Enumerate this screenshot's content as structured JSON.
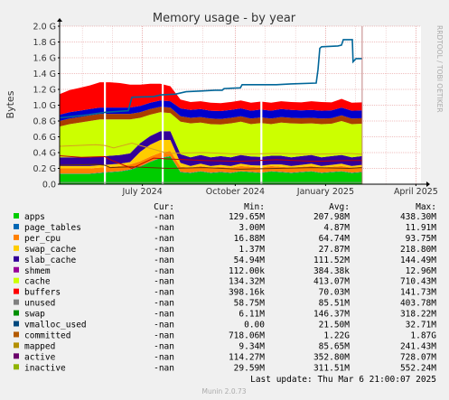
{
  "chart_data": {
    "type": "area",
    "title": "Memory usage - by year",
    "ylabel": "Bytes",
    "side_label": "RRDTOOL / TOBI OETIKER",
    "ylim": [
      0,
      2000000000
    ],
    "y_ticks": [
      {
        "v": 0,
        "label": "0.0"
      },
      {
        "v": 200000000,
        "label": "0.2 G"
      },
      {
        "v": 400000000,
        "label": "0.4 G"
      },
      {
        "v": 600000000,
        "label": "0.6 G"
      },
      {
        "v": 800000000,
        "label": "0.8 G"
      },
      {
        "v": 1000000000,
        "label": "1.0 G"
      },
      {
        "v": 1200000000,
        "label": "1.2 G"
      },
      {
        "v": 1400000000,
        "label": "1.4 G"
      },
      {
        "v": 1600000000,
        "label": "1.6 G"
      },
      {
        "v": 1800000000,
        "label": "1.8 G"
      },
      {
        "v": 2000000000,
        "label": "2.0 G"
      }
    ],
    "x_ticks": [
      {
        "t": 0.229,
        "label": "July 2024",
        "major": true
      },
      {
        "t": 0.486,
        "label": "October 2024",
        "major": true
      },
      {
        "t": 0.736,
        "label": "January 2025",
        "major": true
      },
      {
        "t": 0.986,
        "label": "April 2025",
        "major": true
      }
    ],
    "x_minor": [
      0.063,
      0.146,
      0.313,
      0.396,
      0.569,
      0.653,
      0.819,
      0.903
    ],
    "data_end": 0.836,
    "gaps": [
      0.125,
      0.285,
      0.558
    ],
    "stack": [
      {
        "name": "apps",
        "color": "#00cc00",
        "values": [
          130000000.0,
          130000000.0,
          130000000.0,
          130000000.0,
          140000000.0,
          150000000.0,
          160000000.0,
          180000000.0,
          220000000.0,
          280000000.0,
          330000000.0,
          350000000.0,
          150000000.0,
          140000000.0,
          160000000.0,
          140000000.0,
          150000000.0,
          140000000.0,
          160000000.0,
          150000000.0,
          140000000.0,
          160000000.0,
          150000000.0,
          140000000.0,
          150000000.0,
          160000000.0,
          140000000.0,
          150000000.0,
          160000000.0,
          140000000.0,
          150000000.0
        ]
      },
      {
        "name": "page_tables",
        "color": "#0066b3",
        "values": [
          4900000.0,
          4900000.0,
          4900000.0,
          4900000.0,
          4900000.0,
          4900000.0,
          4900000.0,
          4900000.0,
          4900000.0,
          4900000.0,
          4900000.0,
          4900000.0,
          4900000.0,
          4900000.0,
          4900000.0,
          4900000.0,
          4900000.0,
          4900000.0,
          4900000.0,
          4900000.0,
          4900000.0,
          4900000.0,
          4900000.0,
          4900000.0,
          4900000.0,
          4900000.0,
          4900000.0,
          4900000.0,
          4900000.0,
          4900000.0,
          4900000.0
        ]
      },
      {
        "name": "per_cpu",
        "color": "#ff8000",
        "values": [
          65000000.0,
          65000000.0,
          65000000.0,
          65000000.0,
          65000000.0,
          65000000.0,
          65000000.0,
          65000000.0,
          65000000.0,
          65000000.0,
          65000000.0,
          65000000.0,
          65000000.0,
          65000000.0,
          65000000.0,
          65000000.0,
          65000000.0,
          65000000.0,
          65000000.0,
          65000000.0,
          65000000.0,
          65000000.0,
          65000000.0,
          65000000.0,
          65000000.0,
          65000000.0,
          65000000.0,
          65000000.0,
          65000000.0,
          65000000.0,
          65000000.0
        ]
      },
      {
        "name": "swap_cache",
        "color": "#ffcc00",
        "values": [
          30000000.0,
          30000000.0,
          30000000.0,
          30000000.0,
          30000000.0,
          30000000.0,
          30000000.0,
          30000000.0,
          120000000.0,
          150000000.0,
          160000000.0,
          140000000.0,
          50000000.0,
          20000000.0,
          30000000.0,
          20000000.0,
          25000000.0,
          20000000.0,
          30000000.0,
          20000000.0,
          25000000.0,
          20000000.0,
          30000000.0,
          20000000.0,
          25000000.0,
          30000000.0,
          20000000.0,
          25000000.0,
          30000000.0,
          20000000.0,
          25000000.0
        ]
      },
      {
        "name": "slab_cache",
        "color": "#330099",
        "values": [
          110000000.0,
          110000000.0,
          110000000.0,
          110000000.0,
          110000000.0,
          110000000.0,
          110000000.0,
          110000000.0,
          110000000.0,
          110000000.0,
          110000000.0,
          110000000.0,
          110000000.0,
          110000000.0,
          110000000.0,
          110000000.0,
          110000000.0,
          110000000.0,
          110000000.0,
          110000000.0,
          110000000.0,
          110000000.0,
          110000000.0,
          110000000.0,
          110000000.0,
          110000000.0,
          110000000.0,
          110000000.0,
          110000000.0,
          110000000.0,
          110000000.0
        ]
      },
      {
        "name": "shmem",
        "color": "#990099",
        "values": [
          400000.0,
          400000.0,
          400000.0,
          400000.0,
          400000.0,
          400000.0,
          400000.0,
          400000.0,
          400000.0,
          400000.0,
          400000.0,
          400000.0,
          400000.0,
          400000.0,
          400000.0,
          400000.0,
          400000.0,
          400000.0,
          400000.0,
          400000.0,
          400000.0,
          400000.0,
          400000.0,
          400000.0,
          400000.0,
          400000.0,
          400000.0,
          400000.0,
          400000.0,
          400000.0,
          400000.0
        ]
      },
      {
        "name": "cache",
        "color": "#ccff00",
        "values": [
          390000000.0,
          420000000.0,
          440000000.0,
          460000000.0,
          470000000.0,
          460000000.0,
          450000000.0,
          430000000.0,
          320000000.0,
          270000000.0,
          240000000.0,
          230000000.0,
          410000000.0,
          430000000.0,
          410000000.0,
          420000000.0,
          400000000.0,
          430000000.0,
          420000000.0,
          410000000.0,
          430000000.0,
          400000000.0,
          420000000.0,
          430000000.0,
          410000000.0,
          400000000.0,
          420000000.0,
          410000000.0,
          430000000.0,
          420000000.0,
          410000000.0
        ]
      },
      {
        "name": "buffers",
        "color": "#aa3e00",
        "values": [
          70000000.0,
          70000000.0,
          70000000.0,
          70000000.0,
          70000000.0,
          70000000.0,
          70000000.0,
          70000000.0,
          70000000.0,
          70000000.0,
          70000000.0,
          70000000.0,
          70000000.0,
          70000000.0,
          70000000.0,
          70000000.0,
          70000000.0,
          70000000.0,
          70000000.0,
          70000000.0,
          70000000.0,
          70000000.0,
          70000000.0,
          70000000.0,
          70000000.0,
          70000000.0,
          70000000.0,
          70000000.0,
          70000000.0,
          70000000.0,
          70000000.0
        ]
      },
      {
        "name": "unused",
        "color": "#0000cc",
        "values": [
          80000000.0,
          80000000.0,
          80000000.0,
          80000000.0,
          80000000.0,
          80000000.0,
          80000000.0,
          80000000.0,
          80000000.0,
          80000000.0,
          80000000.0,
          80000000.0,
          100000000.0,
          100000000.0,
          100000000.0,
          100000000.0,
          100000000.0,
          100000000.0,
          100000000.0,
          100000000.0,
          100000000.0,
          100000000.0,
          100000000.0,
          100000000.0,
          100000000.0,
          100000000.0,
          100000000.0,
          100000000.0,
          100000000.0,
          100000000.0,
          100000000.0
        ]
      },
      {
        "name": "swap",
        "color": "#ff0000",
        "values": [
          260000000.0,
          280000000.0,
          290000000.0,
          300000000.0,
          320000000.0,
          320000000.0,
          310000000.0,
          290000000.0,
          270000000.0,
          240000000.0,
          210000000.0,
          190000000.0,
          110000000.0,
          100000000.0,
          100000000.0,
          100000000.0,
          100000000.0,
          100000000.0,
          100000000.0,
          100000000.0,
          100000000.0,
          100000000.0,
          100000000.0,
          100000000.0,
          100000000.0,
          110000000.0,
          110000000.0,
          100000000.0,
          110000000.0,
          100000000.0,
          100000000.0
        ]
      }
    ],
    "lines": [
      {
        "name": "committed",
        "color": "#006699",
        "width": 1.6,
        "points": [
          [
            0.0,
            840000000.0
          ],
          [
            0.04,
            860000000.0
          ],
          [
            0.08,
            880000000.0
          ],
          [
            0.125,
            910000000.0
          ],
          [
            0.19,
            930000000.0
          ],
          [
            0.2,
            1100000000.0
          ],
          [
            0.26,
            1110000000.0
          ],
          [
            0.28,
            1130000000.0
          ],
          [
            0.32,
            1140000000.0
          ],
          [
            0.35,
            1170000000.0
          ],
          [
            0.39,
            1180000000.0
          ],
          [
            0.43,
            1190000000.0
          ],
          [
            0.45,
            1190000000.0
          ],
          [
            0.455,
            1210000000.0
          ],
          [
            0.5,
            1220000000.0
          ],
          [
            0.505,
            1260000000.0
          ],
          [
            0.55,
            1260000000.0
          ],
          [
            0.6,
            1260000000.0
          ],
          [
            0.64,
            1270000000.0
          ],
          [
            0.71,
            1280000000.0
          ],
          [
            0.715,
            1450000000.0
          ],
          [
            0.72,
            1720000000.0
          ],
          [
            0.725,
            1740000000.0
          ],
          [
            0.77,
            1750000000.0
          ],
          [
            0.78,
            1760000000.0
          ],
          [
            0.785,
            1830000000.0
          ],
          [
            0.81,
            1830000000.0
          ],
          [
            0.812,
            1550000000.0
          ],
          [
            0.82,
            1590000000.0
          ],
          [
            0.836,
            1590000000.0
          ]
        ]
      },
      {
        "name": "mapped",
        "color": "#663300",
        "width": 1,
        "points": [
          [
            0.0,
            240000000.0
          ],
          [
            0.1,
            250000000.0
          ],
          [
            0.125,
            240000000.0
          ],
          [
            0.14,
            210000000.0
          ],
          [
            0.2,
            220000000.0
          ],
          [
            0.3,
            200000000.0
          ],
          [
            0.4,
            210000000.0
          ],
          [
            0.5,
            190000000.0
          ],
          [
            0.6,
            200000000.0
          ],
          [
            0.7,
            210000000.0
          ],
          [
            0.8,
            200000000.0
          ],
          [
            0.836,
            210000000.0
          ]
        ]
      },
      {
        "name": "active",
        "color": "#d4a020",
        "width": 1,
        "points": [
          [
            0.0,
            480000000.0
          ],
          [
            0.1,
            500000000.0
          ],
          [
            0.125,
            490000000.0
          ],
          [
            0.15,
            460000000.0
          ],
          [
            0.2,
            520000000.0
          ],
          [
            0.3,
            390000000.0
          ],
          [
            0.4,
            400000000.0
          ],
          [
            0.5,
            380000000.0
          ],
          [
            0.6,
            390000000.0
          ],
          [
            0.7,
            380000000.0
          ],
          [
            0.8,
            390000000.0
          ],
          [
            0.836,
            380000000.0
          ]
        ]
      },
      {
        "name": "inactive",
        "color": "#c00000",
        "width": 1,
        "points": [
          [
            0.0,
            360000000.0
          ],
          [
            0.06,
            340000000.0
          ],
          [
            0.125,
            350000000.0
          ],
          [
            0.14,
            310000000.0
          ],
          [
            0.2,
            200000000.0
          ],
          [
            0.26,
            330000000.0
          ],
          [
            0.3,
            320000000.0
          ],
          [
            0.4,
            300000000.0
          ],
          [
            0.5,
            290000000.0
          ],
          [
            0.6,
            310000000.0
          ],
          [
            0.7,
            290000000.0
          ],
          [
            0.8,
            300000000.0
          ],
          [
            0.836,
            300000000.0
          ]
        ]
      },
      {
        "name": "vmalloc_used",
        "color": "#888888",
        "width": 1,
        "points": [
          [
            0.0,
            22000000.0
          ],
          [
            0.836,
            22000000.0
          ]
        ]
      }
    ]
  },
  "legend": {
    "headers": {
      "cur": "Cur:",
      "min": "Min:",
      "avg": "Avg:",
      "max": "Max:"
    },
    "rows": [
      {
        "name": "apps",
        "color": "#00cc00",
        "cur": "-nan",
        "min": "129.65M",
        "avg": "207.98M",
        "max": "438.30M"
      },
      {
        "name": "page_tables",
        "color": "#0066b3",
        "cur": "-nan",
        "min": "3.00M",
        "avg": "4.87M",
        "max": "11.91M"
      },
      {
        "name": "per_cpu",
        "color": "#ff8000",
        "cur": "-nan",
        "min": "16.88M",
        "avg": "64.74M",
        "max": "93.75M"
      },
      {
        "name": "swap_cache",
        "color": "#ffcc00",
        "cur": "-nan",
        "min": "1.37M",
        "avg": "27.87M",
        "max": "218.80M"
      },
      {
        "name": "slab_cache",
        "color": "#330099",
        "cur": "-nan",
        "min": "54.94M",
        "avg": "111.52M",
        "max": "144.49M"
      },
      {
        "name": "shmem",
        "color": "#990099",
        "cur": "-nan",
        "min": "112.00k",
        "avg": "384.38k",
        "max": "12.96M"
      },
      {
        "name": "cache",
        "color": "#ccff00",
        "cur": "-nan",
        "min": "134.32M",
        "avg": "413.07M",
        "max": "710.43M"
      },
      {
        "name": "buffers",
        "color": "#ff0000",
        "cur": "-nan",
        "min": "398.16k",
        "avg": "70.03M",
        "max": "141.73M"
      },
      {
        "name": "unused",
        "color": "#808080",
        "cur": "-nan",
        "min": "58.75M",
        "avg": "85.51M",
        "max": "403.78M"
      },
      {
        "name": "swap",
        "color": "#008f00",
        "cur": "-nan",
        "min": "6.11M",
        "avg": "146.37M",
        "max": "318.22M"
      },
      {
        "name": "vmalloc_used",
        "color": "#00487d",
        "cur": "-nan",
        "min": "0.00",
        "avg": "21.50M",
        "max": "32.71M"
      },
      {
        "name": "committed",
        "color": "#b35a00",
        "cur": "-nan",
        "min": "718.06M",
        "avg": "1.22G",
        "max": "1.87G"
      },
      {
        "name": "mapped",
        "color": "#b38f00",
        "cur": "-nan",
        "min": "9.34M",
        "avg": "85.65M",
        "max": "241.43M"
      },
      {
        "name": "active",
        "color": "#6b006b",
        "cur": "-nan",
        "min": "114.27M",
        "avg": "352.80M",
        "max": "728.07M"
      },
      {
        "name": "inactive",
        "color": "#8fb300",
        "cur": "-nan",
        "min": "29.59M",
        "avg": "311.51M",
        "max": "552.24M"
      }
    ]
  },
  "footer": {
    "last_update": "Last update: Thu Mar  6 21:00:07 2025",
    "munin": "Munin 2.0.73"
  },
  "colors": {
    "canvas": "#f0f0f0",
    "plot_bg": "#ffffff",
    "grid_minor": "#e8c0c0",
    "grid_major": "#e08080",
    "axis": "#000000"
  }
}
